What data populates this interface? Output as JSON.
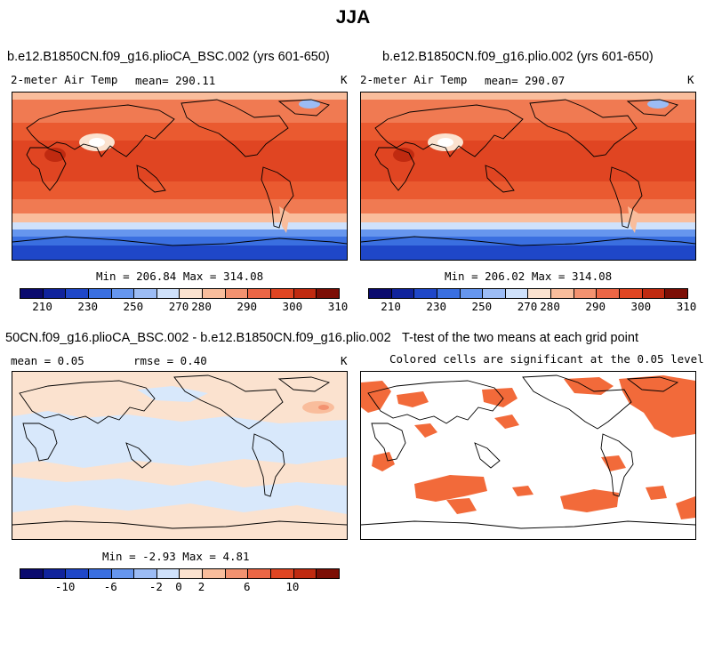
{
  "figure": {
    "title": "JJA"
  },
  "panels": [
    {
      "title": "b.e12.B1850CN.f09_g16.plioCA_BSC.002 (yrs 601-650)",
      "variable": "2-meter Air Temp",
      "mean_label": "mean= 290.11",
      "units": "K",
      "stats": "Min = 206.84 Max = 314.08"
    },
    {
      "title": "b.e12.B1850CN.f09_g16.plio.002 (yrs 601-650)",
      "variable": "2-meter Air Temp",
      "mean_label": "mean= 290.07",
      "units": "K",
      "stats": "Min = 206.02 Max = 314.08"
    },
    {
      "title": "50CN.f09_g16.plioCA_BSC.002 - b.e12.B1850CN.f09_g16.plio.002",
      "mean_label": "mean =    0.05",
      "rmse_label": "rmse =    0.40",
      "units": "K",
      "stats": "Min =  -2.93 Max =   4.81"
    },
    {
      "title": "T-test of the two means at each grid point",
      "subtitle": "Colored cells are significant at the 0.05 level"
    }
  ],
  "colorbars": {
    "abs": {
      "colors": [
        "#0a0a6e",
        "#10239c",
        "#1f47c8",
        "#3a6fe0",
        "#6696ee",
        "#9cbcf5",
        "#cfe1fb",
        "#fbe2cf",
        "#f9bd9c",
        "#f39270",
        "#ec6645",
        "#e04522",
        "#c02a10",
        "#7c0e05"
      ],
      "ticks": [
        "210",
        "230",
        "250",
        "270",
        "280",
        "290",
        "300",
        "310"
      ],
      "tick_index": [
        1,
        3,
        5,
        7,
        8,
        10,
        12,
        14
      ]
    },
    "diff": {
      "colors": [
        "#0a0a6e",
        "#10239c",
        "#1f47c8",
        "#3a6fe0",
        "#6696ee",
        "#9cbcf5",
        "#cfe1fb",
        "#fbe2cf",
        "#f9bd9c",
        "#f39270",
        "#ec6645",
        "#e04522",
        "#c02a10",
        "#7c0e05"
      ],
      "ticks": [
        "-10",
        "-6",
        "-2",
        "0",
        "2",
        "6",
        "10"
      ],
      "tick_index": [
        2,
        4,
        6,
        7,
        8,
        10,
        12
      ]
    }
  },
  "colors": {
    "significant": "#f26a3a",
    "diff_warm": "#fbe2cf",
    "diff_cool": "#d8e8fb"
  }
}
